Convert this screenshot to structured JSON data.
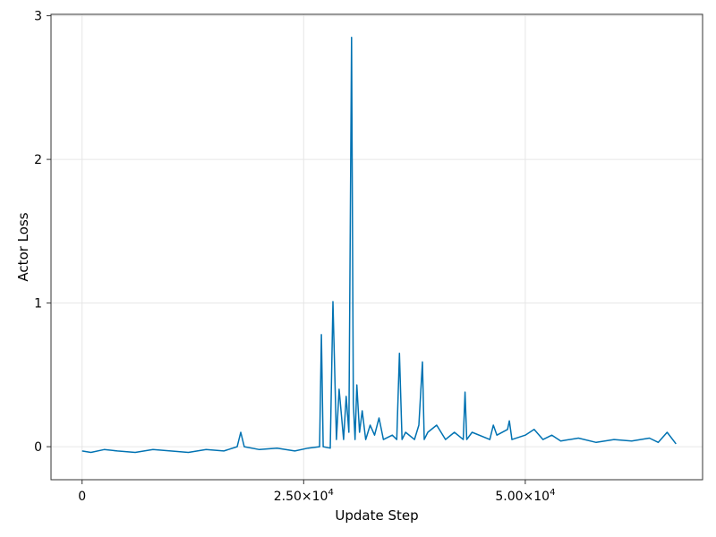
{
  "chart_data": {
    "type": "line",
    "title": "",
    "xlabel": "Update Step",
    "ylabel": "Actor Loss",
    "xlim": [
      -3500,
      70000
    ],
    "ylim": [
      -0.23,
      3.01
    ],
    "x_ticks": [
      0,
      25000,
      50000
    ],
    "x_tick_labels": [
      "0",
      "2.50×10",
      "5.00×10"
    ],
    "x_tick_exponents": [
      "",
      "4",
      "4"
    ],
    "y_ticks": [
      0,
      1,
      2,
      3
    ],
    "y_tick_labels": [
      "0",
      "1",
      "2",
      "3"
    ],
    "grid": true,
    "legend": "none",
    "series_color": "#0072b2",
    "series": [
      {
        "x": [
          0,
          1000,
          2500,
          4000,
          6000,
          8000,
          10000,
          12000,
          14000,
          16000,
          17500,
          17900,
          18300,
          20000,
          22000,
          24000,
          25500,
          26800,
          27000,
          27200,
          28000,
          28300,
          28600,
          28700,
          29000,
          29500,
          29800,
          30100,
          30400,
          30600,
          30800,
          31000,
          31300,
          31600,
          32000,
          32500,
          33000,
          33500,
          34000,
          35000,
          35500,
          35800,
          36100,
          36500,
          37500,
          38000,
          38400,
          38600,
          39000,
          40000,
          41000,
          42000,
          43000,
          43200,
          43400,
          44000,
          46000,
          46400,
          46800,
          48000,
          48200,
          48500,
          50000,
          51000,
          52000,
          53000,
          54000,
          56000,
          58000,
          60000,
          62000,
          64000,
          65000,
          66000,
          67000
        ],
        "y": [
          -0.03,
          -0.04,
          -0.02,
          -0.03,
          -0.04,
          -0.02,
          -0.03,
          -0.04,
          -0.02,
          -0.03,
          0.0,
          0.1,
          0.0,
          -0.02,
          -0.01,
          -0.03,
          -0.01,
          0.0,
          0.78,
          0.0,
          -0.01,
          1.01,
          0.3,
          0.05,
          0.4,
          0.05,
          0.35,
          0.1,
          2.85,
          0.3,
          0.05,
          0.43,
          0.1,
          0.25,
          0.05,
          0.15,
          0.08,
          0.2,
          0.05,
          0.08,
          0.05,
          0.65,
          0.05,
          0.1,
          0.05,
          0.15,
          0.59,
          0.05,
          0.1,
          0.15,
          0.05,
          0.1,
          0.05,
          0.38,
          0.05,
          0.1,
          0.05,
          0.15,
          0.08,
          0.12,
          0.18,
          0.05,
          0.08,
          0.12,
          0.05,
          0.08,
          0.04,
          0.06,
          0.03,
          0.05,
          0.04,
          0.06,
          0.03,
          0.1,
          0.02
        ]
      }
    ]
  }
}
